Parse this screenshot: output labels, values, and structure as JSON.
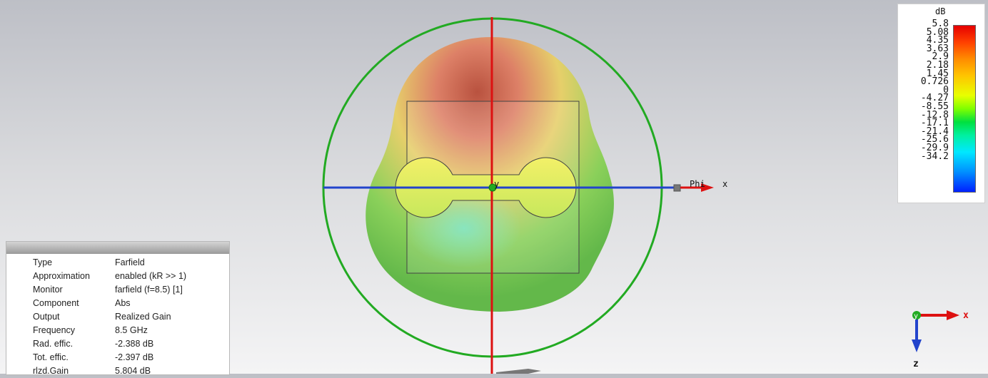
{
  "viewport": {
    "axis_labels": {
      "phi": "Phi",
      "x": "x",
      "y": "y"
    }
  },
  "info_panel": {
    "rows": [
      {
        "key": "Type",
        "value": "Farfield"
      },
      {
        "key": "Approximation",
        "value": "enabled (kR >> 1)"
      },
      {
        "key": "Monitor",
        "value": "farfield (f=8.5) [1]"
      },
      {
        "key": "Component",
        "value": "Abs"
      },
      {
        "key": "Output",
        "value": "Realized Gain"
      },
      {
        "key": "Frequency",
        "value": "8.5 GHz"
      },
      {
        "key": "Rad. effic.",
        "value": "-2.388 dB"
      },
      {
        "key": "Tot. effic.",
        "value": "-2.397 dB"
      },
      {
        "key": "rlzd.Gain",
        "value": "5.804 dB"
      }
    ]
  },
  "legend": {
    "unit": "dB",
    "ticks": [
      "5.8",
      "5.08",
      "4.35",
      "3.63",
      "2.9",
      "2.18",
      "1.45",
      "0.726",
      "0",
      "-4.27",
      "-8.55",
      "-12.8",
      "-17.1",
      "-21.4",
      "-25.6",
      "-29.9",
      "-34.2"
    ],
    "colors": {
      "max": "#e60000",
      "mid": "#00e040",
      "min": "#0020ff"
    }
  },
  "triad": {
    "x_label": "x",
    "y_label": "y",
    "z_label": "z"
  },
  "colors": {
    "x_axis": "#2244cc",
    "vertical_axis": "#dd1111",
    "circle": "#22aa22",
    "pattern_base": "#6cc84a"
  }
}
